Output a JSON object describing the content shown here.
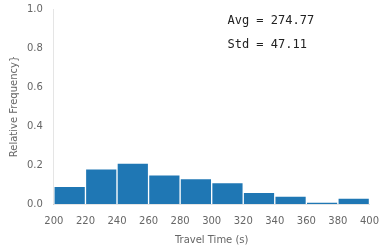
{
  "chart_data": {
    "type": "histogram",
    "bins": [
      200,
      220,
      240,
      260,
      280,
      300,
      320,
      340,
      360,
      380,
      400
    ],
    "values": [
      0.09,
      0.18,
      0.21,
      0.15,
      0.13,
      0.11,
      0.06,
      0.04,
      0.01,
      0.03
    ],
    "color": "#1f77b4",
    "xlabel": "Travel Time (s)",
    "ylabel": "Relative Frequency}",
    "xlim": [
      200,
      400
    ],
    "ylim": [
      0,
      1.0
    ],
    "xticks": [
      200,
      220,
      240,
      260,
      280,
      300,
      320,
      340,
      360,
      380,
      400
    ],
    "yticks": [
      {
        "value": 0,
        "label": "0.0"
      },
      0.2,
      0.4,
      0.6,
      0.8,
      {
        "value": 1,
        "label": "1.0"
      }
    ],
    "annotations": [
      "Avg = 274.77",
      "Std = 47.11"
    ],
    "grid": false
  }
}
